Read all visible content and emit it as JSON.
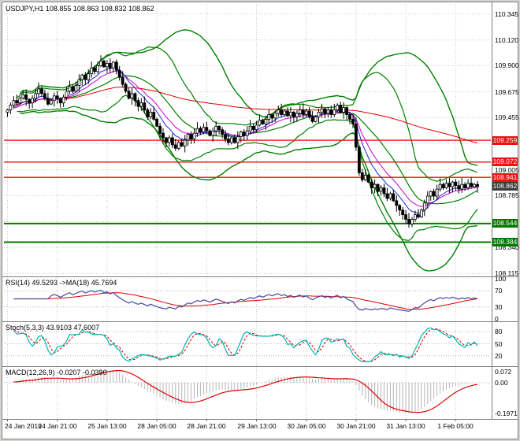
{
  "main_chart": {
    "title": "USDJPY,H1 108.855 108.863 108.832 108.862",
    "scale_labels": [
      "110.345",
      "110.120",
      "109.900",
      "109.675",
      "109.455",
      "109.005",
      "108.785",
      "108.340",
      "108.115"
    ],
    "grid_prices": [
      110.345,
      110.12,
      109.9,
      109.675,
      109.455,
      109.23,
      109.005,
      108.785,
      108.56,
      108.34,
      108.115
    ],
    "level_lines": [
      {
        "price": 109.259,
        "label": "109.259",
        "color": "#ee1111",
        "width": 1.4
      },
      {
        "price": 109.072,
        "label": "109.072",
        "color": "#ee1111",
        "width": 1.4
      },
      {
        "price": 108.941,
        "label": "108.941",
        "color": "#ee1111",
        "width": 1.4
      },
      {
        "price": 108.544,
        "label": "108.544",
        "color": "#007a00",
        "width": 2
      },
      {
        "price": 108.384,
        "label": "108.384",
        "color": "#007a00",
        "width": 2
      }
    ],
    "current_price": {
      "value": 108.862,
      "label": "108.862",
      "bg": "#3c3c3c"
    }
  },
  "indicators": {
    "rsi": {
      "label": "RSI(14) 49.5293 ->MA(18) 45.7694",
      "period": 14,
      "ma_period": 18,
      "scale": [
        {
          "v": 100,
          "t": "100"
        },
        {
          "v": 70,
          "t": "70"
        },
        {
          "v": 30,
          "t": "30"
        },
        {
          "v": 0,
          "t": "0"
        }
      ],
      "levels": [
        70,
        30
      ],
      "colors": {
        "main": "#4646a0",
        "ma": "#dd0000"
      }
    },
    "stoch": {
      "label": "Stoch(5,3,3) 43.9103 47.6007",
      "k": 5,
      "slowing": 3,
      "d": 3,
      "scale": [
        {
          "v": 80,
          "t": "80"
        },
        {
          "v": 50,
          "t": "50"
        },
        {
          "v": 20,
          "t": "20"
        }
      ],
      "levels": [
        80,
        50,
        20
      ],
      "colors": {
        "main": "#00b4b4",
        "signal": "#dd0000"
      }
    },
    "macd": {
      "label": "MACD(12,26,9) -0.0207 -0.0390",
      "fast": 12,
      "slow": 26,
      "signal": 9,
      "scale": [
        {
          "v": 0.072,
          "t": "0.072"
        },
        {
          "v": 0,
          "t": "0.00"
        },
        {
          "v": -0.1971,
          "t": "-0.1971"
        }
      ],
      "ylim": [
        -0.22,
        0.09
      ],
      "colors": {
        "hist": "#b4b4b4",
        "signal": "#dd0000"
      }
    }
  },
  "chart_data": {
    "type": "candlestick",
    "symbol": "USDJPY",
    "timeframe": "H1",
    "quote": {
      "open": "108.855",
      "high": "108.863",
      "low": "108.832",
      "close": "108.862"
    },
    "ylim": [
      108.09,
      110.43
    ],
    "x_ticks": [
      {
        "bar": 0,
        "text": "24 Jan 2019"
      },
      {
        "bar": 16,
        "text": "24 Jan 21:00"
      },
      {
        "bar": 32,
        "text": "25 Jan 13:00"
      },
      {
        "bar": 48,
        "text": "28 Jan 05:00"
      },
      {
        "bar": 64,
        "text": "28 Jan 21:00"
      },
      {
        "bar": 80,
        "text": "29 Jan 13:00"
      },
      {
        "bar": 96,
        "text": "30 Jan 05:00"
      },
      {
        "bar": 112,
        "text": "30 Jan 21:00"
      },
      {
        "bar": 128,
        "text": "31 Jan 13:00"
      },
      {
        "bar": 144,
        "text": "1 Feb 05:00"
      }
    ],
    "first_open": 109.5,
    "closes": [
      109.52,
      109.56,
      109.6,
      109.58,
      109.62,
      109.65,
      109.61,
      109.58,
      109.62,
      109.66,
      109.7,
      109.66,
      109.62,
      109.57,
      109.6,
      109.64,
      109.62,
      109.58,
      109.63,
      109.68,
      109.72,
      109.68,
      109.73,
      109.78,
      109.82,
      109.78,
      109.83,
      109.88,
      109.85,
      109.9,
      109.94,
      109.89,
      109.92,
      109.88,
      109.93,
      109.86,
      109.8,
      109.74,
      109.68,
      109.62,
      109.66,
      109.6,
      109.55,
      109.58,
      109.52,
      109.46,
      109.5,
      109.44,
      109.38,
      109.32,
      109.28,
      109.24,
      109.28,
      109.22,
      109.19,
      109.24,
      109.21,
      109.26,
      109.31,
      109.27,
      109.32,
      109.36,
      109.33,
      109.37,
      109.34,
      109.3,
      109.34,
      109.38,
      109.35,
      109.31,
      109.27,
      109.24,
      109.28,
      109.24,
      109.29,
      109.33,
      109.3,
      109.34,
      109.38,
      109.35,
      109.39,
      109.43,
      109.4,
      109.44,
      109.48,
      109.45,
      109.49,
      109.52,
      109.48,
      109.51,
      109.47,
      109.5,
      109.46,
      109.49,
      109.52,
      109.48,
      109.51,
      109.46,
      109.42,
      109.46,
      109.5,
      109.53,
      109.49,
      109.52,
      109.48,
      109.52,
      109.56,
      109.5,
      109.54,
      109.48,
      109.44,
      109.4,
      109.2,
      108.98,
      108.92,
      108.96,
      108.9,
      108.85,
      108.88,
      108.82,
      108.85,
      108.8,
      108.76,
      108.8,
      108.74,
      108.7,
      108.66,
      108.62,
      108.58,
      108.54,
      108.58,
      108.62,
      108.6,
      108.66,
      108.72,
      108.78,
      108.82,
      108.78,
      108.84,
      108.88,
      108.85,
      108.89,
      108.86,
      108.9,
      108.87,
      108.84,
      108.88,
      108.85,
      108.89,
      108.86,
      108.88,
      108.862
    ],
    "overlays": {
      "bollinger_fast": {
        "period": 20,
        "deviation": 2,
        "color": "#008000"
      },
      "bollinger_slow": {
        "period": 36,
        "deviation": 2.4,
        "color": "#008000"
      },
      "ma_fast": {
        "period": 8,
        "type": "ema",
        "color": "#2222cc"
      },
      "ma_mid": {
        "period": 13,
        "type": "ema",
        "color": "#cc00cc"
      },
      "ma_slow": {
        "period": 120,
        "type": "sma",
        "color": "#dd0000"
      }
    },
    "horizontal_levels": {
      "resistance": [
        109.259,
        109.072,
        108.941
      ],
      "support": [
        108.544,
        108.384
      ]
    },
    "indicator_readings": {
      "rsi": 49.5293,
      "rsi_ma": 45.7694,
      "stoch_main": 43.9103,
      "stoch_signal": 47.6007,
      "macd": -0.0207,
      "macd_signal": -0.039
    }
  }
}
